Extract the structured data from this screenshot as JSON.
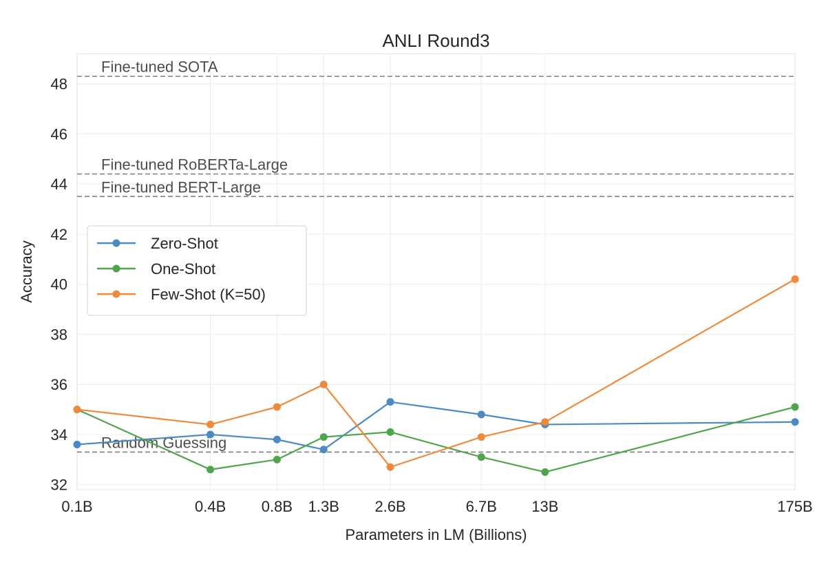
{
  "chart_data": {
    "type": "line",
    "title": "ANLI Round3",
    "xlabel": "Parameters in LM (Billions)",
    "ylabel": "Accuracy",
    "categories": [
      "0.1B",
      "0.4B",
      "0.8B",
      "1.3B",
      "2.6B",
      "6.7B",
      "13B",
      "175B"
    ],
    "x_scale": "log",
    "ylim": [
      31.8,
      49.2
    ],
    "yticks": [
      32,
      34,
      36,
      38,
      40,
      42,
      44,
      46,
      48
    ],
    "grid": true,
    "legend_position": "center-left",
    "series": [
      {
        "name": "Zero-Shot",
        "color": "#4c8ac4",
        "values": [
          33.6,
          34.0,
          33.8,
          33.4,
          35.3,
          34.8,
          34.4,
          34.5
        ]
      },
      {
        "name": "One-Shot",
        "color": "#4ea54a",
        "values": [
          35.0,
          32.6,
          33.0,
          33.9,
          34.1,
          33.1,
          32.5,
          35.1
        ]
      },
      {
        "name": "Few-Shot (K=50)",
        "color": "#f0893a",
        "values": [
          35.0,
          34.4,
          35.1,
          36.0,
          32.7,
          33.9,
          34.5,
          40.2
        ]
      }
    ],
    "reference_lines": [
      {
        "label": "Fine-tuned SOTA",
        "value": 48.3
      },
      {
        "label": "Fine-tuned RoBERTa-Large",
        "value": 44.4
      },
      {
        "label": "Fine-tuned BERT-Large",
        "value": 43.5
      },
      {
        "label": "Random Guessing",
        "value": 33.3
      }
    ]
  }
}
